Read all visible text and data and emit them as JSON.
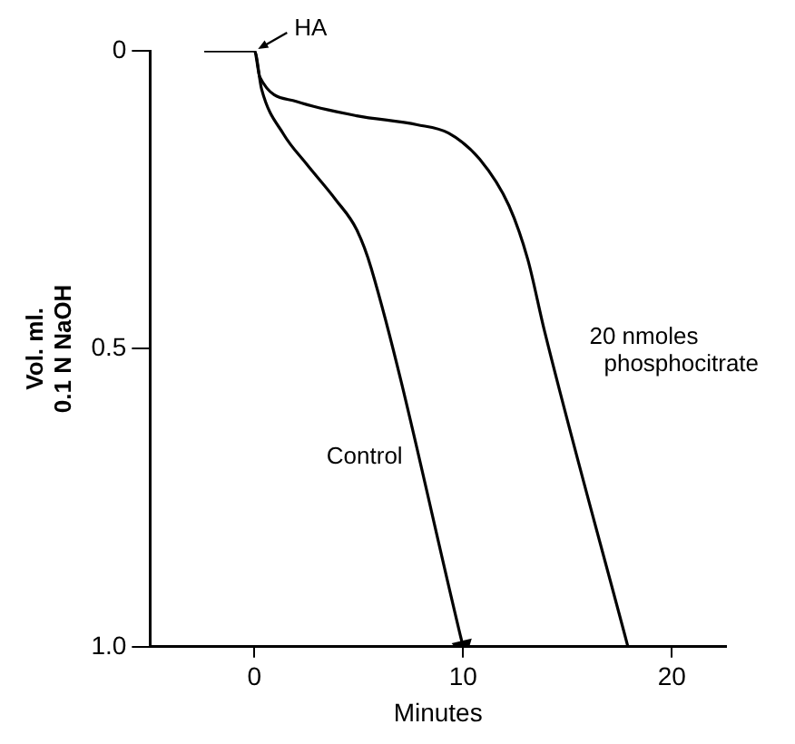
{
  "chart_data": {
    "type": "line",
    "xlabel": "Minutes",
    "ylabel": "Vol. ml. 0.1 N NaOH",
    "xlim": [
      -5,
      22.6
    ],
    "ylim": [
      1.0,
      0
    ],
    "xticks": [
      0,
      10,
      20
    ],
    "yticks": [
      0,
      0.5,
      {
        "value": 1.0,
        "label": "1.0"
      }
    ],
    "grid": false,
    "legend": false,
    "marker": "none",
    "line_style": "solid",
    "series": [
      {
        "name": "Control",
        "color": "#000000",
        "x": [
          -2.4,
          0,
          0.35,
          1.4,
          2.5,
          3.9,
          4.9,
          5.6,
          10
        ],
        "values": [
          0,
          0,
          0.065,
          0.14,
          0.19,
          0.25,
          0.3,
          0.365,
          1.0
        ]
      },
      {
        "name": "20 nmoles phosphocitrate",
        "color": "#000000",
        "x": [
          -2.4,
          0,
          0.26,
          2.0,
          4.9,
          7.8,
          9.3,
          10.8,
          12.2,
          13.1,
          13.9,
          17.9
        ],
        "values": [
          0,
          0,
          0.044,
          0.085,
          0.109,
          0.124,
          0.138,
          0.182,
          0.26,
          0.35,
          0.47,
          1.0
        ]
      }
    ],
    "annotations": [
      {
        "text": "HA",
        "x": 0,
        "y": 0
      }
    ]
  }
}
